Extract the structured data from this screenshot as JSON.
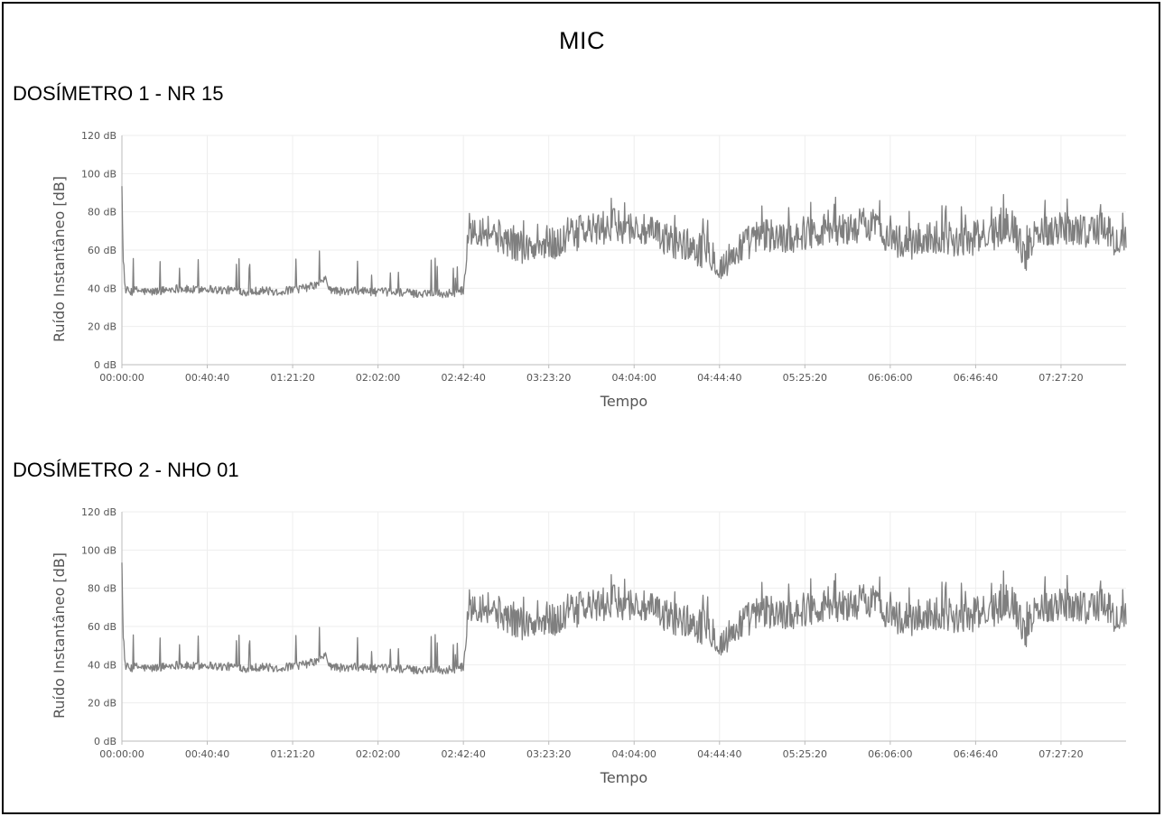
{
  "page": {
    "title": "MIC"
  },
  "charts": [
    {
      "section_title": "DOSÍMETRO 1 - NR 15"
    },
    {
      "section_title": "DOSÍMETRO 2 - NHO 01"
    }
  ],
  "chart_data": [
    {
      "type": "line",
      "title": "DOSÍMETRO 1 - NR 15",
      "xlabel": "Tempo",
      "ylabel": "Ruído Instantâneo [dB]",
      "ylim": [
        0,
        120
      ],
      "y_ticks": [
        "0 dB",
        "20 dB",
        "40 dB",
        "60 dB",
        "80 dB",
        "100 dB",
        "120 dB"
      ],
      "y_tick_values": [
        0,
        20,
        40,
        60,
        80,
        100,
        120
      ],
      "x_unit": "seconds",
      "xlim": [
        0,
        28700
      ],
      "x_ticks": [
        "00:00:00",
        "00:40:40",
        "01:21:20",
        "02:02:00",
        "02:42:40",
        "03:23:20",
        "04:04:00",
        "04:44:40",
        "05:25:20",
        "06:06:00",
        "06:46:40",
        "07:27:20"
      ],
      "x_tick_values": [
        0,
        2440,
        4880,
        7320,
        9760,
        12200,
        14640,
        17080,
        19520,
        21960,
        24400,
        26840
      ],
      "grid": true,
      "series": [
        {
          "color": "#7f7f7f",
          "x": [
            0,
            80,
            200,
            400,
            800,
            1200,
            1600,
            2000,
            2400,
            2800,
            3200,
            3600,
            4000,
            4400,
            4800,
            5200,
            5400,
            5600,
            5800,
            5900,
            6000,
            6400,
            6800,
            7200,
            7600,
            8000,
            8400,
            8800,
            9200,
            9600,
            9760,
            9900,
            10100,
            10500,
            10900,
            11300,
            11700,
            12100,
            12500,
            12900,
            13300,
            13700,
            14100,
            14500,
            14900,
            15300,
            15700,
            16100,
            16500,
            16900,
            17100,
            17300,
            17700,
            18100,
            18500,
            18900,
            19300,
            19700,
            20100,
            20500,
            20900,
            21300,
            21700,
            22100,
            22500,
            22900,
            23300,
            23700,
            24100,
            24500,
            24900,
            25300,
            25500,
            25800,
            26100,
            26500,
            26900,
            27300,
            27700,
            28100,
            28400,
            28700
          ],
          "y": [
            80,
            40,
            38,
            39,
            38,
            39,
            40,
            39,
            40,
            39,
            39,
            38,
            39,
            38,
            39,
            40,
            41,
            42,
            45,
            41,
            39,
            38,
            39,
            38,
            38,
            38,
            37,
            38,
            37,
            38,
            39,
            70,
            72,
            70,
            66,
            63,
            60,
            62,
            64,
            68,
            70,
            71,
            73,
            72,
            70,
            67,
            65,
            63,
            60,
            58,
            50,
            54,
            62,
            66,
            68,
            66,
            68,
            70,
            71,
            70,
            72,
            74,
            70,
            65,
            63,
            66,
            67,
            66,
            65,
            67,
            68,
            74,
            72,
            56,
            70,
            71,
            72,
            71,
            70,
            72,
            64,
            66
          ]
        }
      ]
    },
    {
      "type": "line",
      "title": "DOSÍMETRO 2 - NHO 01",
      "xlabel": "Tempo",
      "ylabel": "Ruído Instantâneo [dB]",
      "ylim": [
        0,
        120
      ],
      "y_ticks": [
        "0 dB",
        "20 dB",
        "40 dB",
        "60 dB",
        "80 dB",
        "100 dB",
        "120 dB"
      ],
      "y_tick_values": [
        0,
        20,
        40,
        60,
        80,
        100,
        120
      ],
      "x_unit": "seconds",
      "xlim": [
        0,
        28700
      ],
      "x_ticks": [
        "00:00:00",
        "00:40:40",
        "01:21:20",
        "02:02:00",
        "02:42:40",
        "03:23:20",
        "04:04:00",
        "04:44:40",
        "05:25:20",
        "06:06:00",
        "06:46:40",
        "07:27:20"
      ],
      "x_tick_values": [
        0,
        2440,
        4880,
        7320,
        9760,
        12200,
        14640,
        17080,
        19520,
        21960,
        24400,
        26840
      ],
      "grid": true,
      "series": [
        {
          "color": "#7f7f7f",
          "x": [
            0,
            80,
            200,
            400,
            800,
            1200,
            1600,
            2000,
            2400,
            2800,
            3200,
            3600,
            4000,
            4400,
            4800,
            5200,
            5400,
            5600,
            5800,
            5900,
            6000,
            6400,
            6800,
            7200,
            7600,
            8000,
            8400,
            8800,
            9200,
            9600,
            9760,
            9900,
            10100,
            10500,
            10900,
            11300,
            11700,
            12100,
            12500,
            12900,
            13300,
            13700,
            14100,
            14500,
            14900,
            15300,
            15700,
            16100,
            16500,
            16900,
            17100,
            17300,
            17700,
            18100,
            18500,
            18900,
            19300,
            19700,
            20100,
            20500,
            20900,
            21300,
            21700,
            22100,
            22500,
            22900,
            23300,
            23700,
            24100,
            24500,
            24900,
            25300,
            25500,
            25800,
            26100,
            26500,
            26900,
            27300,
            27700,
            28100,
            28400,
            28700
          ],
          "y": [
            80,
            40,
            38,
            39,
            38,
            39,
            40,
            39,
            40,
            39,
            39,
            38,
            39,
            38,
            39,
            40,
            41,
            42,
            45,
            41,
            39,
            38,
            39,
            38,
            38,
            38,
            37,
            38,
            37,
            38,
            39,
            70,
            72,
            70,
            66,
            63,
            60,
            62,
            64,
            68,
            70,
            71,
            73,
            72,
            70,
            67,
            65,
            63,
            60,
            58,
            50,
            54,
            62,
            66,
            68,
            66,
            68,
            70,
            71,
            70,
            72,
            74,
            70,
            65,
            63,
            66,
            67,
            66,
            65,
            67,
            68,
            74,
            72,
            56,
            70,
            71,
            72,
            71,
            70,
            72,
            64,
            66
          ]
        }
      ]
    }
  ]
}
